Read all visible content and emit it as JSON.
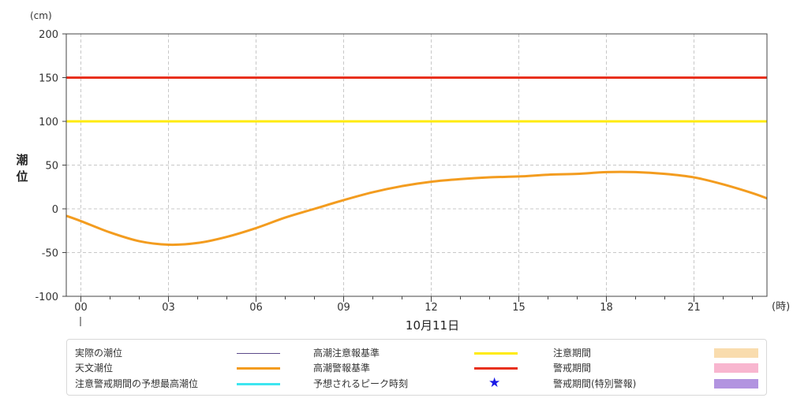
{
  "chart_data": {
    "type": "line",
    "unit_label": "(cm)",
    "ylabel": "潮位",
    "xlabel_unit": "(時)",
    "date_label": "10月11日",
    "ylim": [
      -100,
      200
    ],
    "yticks": [
      "200",
      "150",
      "100",
      "50",
      "0",
      "-50",
      "-100"
    ],
    "ytick_values": [
      200,
      150,
      100,
      50,
      0,
      -50,
      -100
    ],
    "xlim": [
      -0.5,
      23.5
    ],
    "xticks": [
      "00",
      "03",
      "06",
      "09",
      "12",
      "15",
      "18",
      "21"
    ],
    "xtick_values": [
      0,
      3,
      6,
      9,
      12,
      15,
      18,
      21
    ],
    "grid": true,
    "series": [
      {
        "name": "天文潮位",
        "color": "#f39c1f",
        "x": [
          -0.5,
          0,
          1,
          2,
          3,
          4,
          5,
          6,
          7,
          8,
          9,
          10,
          11,
          12,
          13,
          14,
          15,
          16,
          17,
          18,
          19,
          20,
          21,
          22,
          23,
          23.5
        ],
        "y": [
          -8,
          -14,
          -27,
          -37,
          -41,
          -39,
          -32,
          -22,
          -10,
          0,
          10,
          19,
          26,
          31,
          34,
          36,
          37,
          39,
          40,
          42,
          42,
          40,
          36,
          28,
          18,
          12
        ]
      }
    ],
    "reference_lines": [
      {
        "name": "高潮注意報基準",
        "value": 100,
        "color": "#ffeb0a"
      },
      {
        "name": "高潮警報基準",
        "value": 150,
        "color": "#e8301c"
      }
    ]
  },
  "legend": [
    {
      "label": "実際の潮位",
      "kind": "line",
      "color": "#5c4a8a",
      "thin": true
    },
    {
      "label": "天文潮位",
      "kind": "line",
      "color": "#f39c1f"
    },
    {
      "label": "注意警戒期間の予想最高潮位",
      "kind": "line",
      "color": "#3ee6f0"
    },
    {
      "label": "高潮注意報基準",
      "kind": "line",
      "color": "#ffeb0a"
    },
    {
      "label": "高潮警報基準",
      "kind": "line",
      "color": "#e8301c"
    },
    {
      "label": "予想されるピーク時刻",
      "kind": "star",
      "color": "#1a1ae6"
    },
    {
      "label": "注意期間",
      "kind": "box",
      "color": "#f9dcae"
    },
    {
      "label": "警戒期間",
      "kind": "box",
      "color": "#f8b6cf"
    },
    {
      "label": "警戒期間(特別警報)",
      "kind": "box",
      "color": "#b294e0"
    }
  ]
}
